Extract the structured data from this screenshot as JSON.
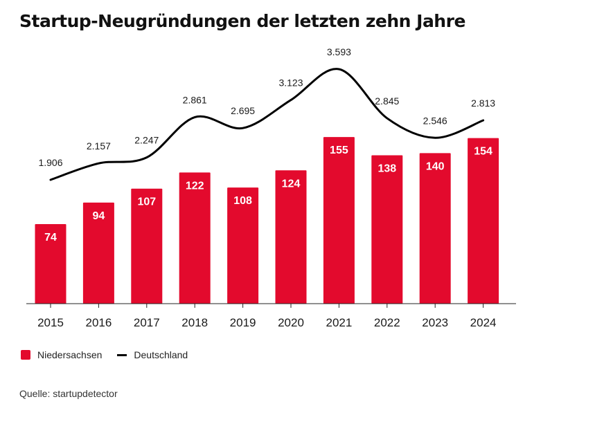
{
  "chart_data": {
    "type": "bar",
    "title": "Startup-Neugründungen der letzten zehn Jahre",
    "categories": [
      "2015",
      "2016",
      "2017",
      "2018",
      "2019",
      "2020",
      "2021",
      "2022",
      "2023",
      "2024"
    ],
    "series": [
      {
        "name": "Niedersachsen",
        "type": "bar",
        "color": "#e30a2d",
        "values": [
          74,
          94,
          107,
          122,
          108,
          124,
          155,
          138,
          140,
          154
        ],
        "labels": [
          "74",
          "94",
          "107",
          "122",
          "108",
          "124",
          "155",
          "138",
          "140",
          "154"
        ]
      },
      {
        "name": "Deutschland",
        "type": "line",
        "color": "#000000",
        "values": [
          1906,
          2157,
          2247,
          2861,
          2695,
          3123,
          3593,
          2845,
          2546,
          2813
        ],
        "labels": [
          "1.906",
          "2.157",
          "2.247",
          "2.861",
          "2.695",
          "3.123",
          "3.593",
          "2.845",
          "2.546",
          "2.813"
        ]
      }
    ],
    "xlabel": "",
    "ylabel": "",
    "grid": false,
    "legend_position": "bottom-left",
    "source": "Quelle: startupdetector"
  }
}
